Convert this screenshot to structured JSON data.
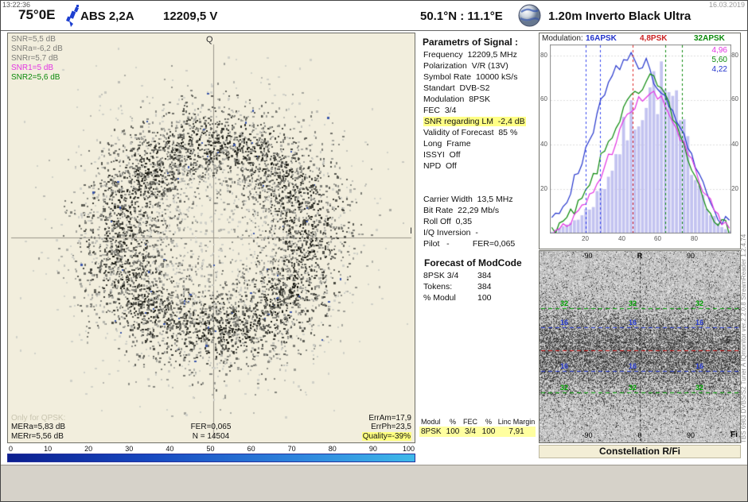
{
  "window": {
    "time": "13:22:36",
    "date": "16.03.2019"
  },
  "header": {
    "orbital_position": "75°0E",
    "satellite_name": "ABS 2,2A",
    "frequency_pol": "12209,5  V",
    "site_coords": "50.1°N : 11.1°E",
    "antenna": "1.20m  Inverto Black Ultra"
  },
  "constellation_panel": {
    "snr_readouts": [
      {
        "text": "SNR=5,5 dB",
        "color": "#7d7d78"
      },
      {
        "text": "SNRa=-6,2 dB",
        "color": "#7d7d78"
      },
      {
        "text": "SNRr=5,7 dB",
        "color": "#7d7d78"
      },
      {
        "text": "SNR1=5 dB",
        "color": "#e335e3"
      },
      {
        "text": "SNR2=5,6 dB",
        "color": "#0b8a0b"
      }
    ],
    "axis_labels": {
      "vertical": "Q",
      "horizontal": "I"
    },
    "footer_left": [
      "Only for QPSK:",
      "MERa=5,83 dB",
      "MERr=5,56 dB"
    ],
    "footer_center": [
      "FER=0,065",
      "N = 14504"
    ],
    "footer_right": [
      "ErrAm=17,9",
      "ErrPh=23,5"
    ],
    "quality_badge": "Quality=-39%"
  },
  "quality_scale": {
    "ticks": [
      "0",
      "10",
      "20",
      "30",
      "40",
      "50",
      "60",
      "70",
      "80",
      "90",
      "100"
    ]
  },
  "signal_params": {
    "title": "Parametrs of Signal :",
    "rows": [
      {
        "text": "Frequency  12209,5 MHz"
      },
      {
        "text": "Polarization  V/R (13V)"
      },
      {
        "text": "Symbol Rate  10000 kS/s"
      },
      {
        "text": "Standart  DVB-S2"
      },
      {
        "text": "Modulation  8PSK"
      },
      {
        "text": "FEC  3/4"
      },
      {
        "text": "SNR regarding LM  -2,4 dB",
        "hl": true
      },
      {
        "text": "Validity of Forecast  85 %"
      },
      {
        "text": "Long  Frame"
      },
      {
        "text": "ISSYI  Off"
      },
      {
        "text": "NPD  Off"
      },
      {
        "text": ""
      },
      {
        "text": ""
      },
      {
        "text": "Carrier Width  13,5 MHz"
      },
      {
        "text": "Bit Rate  22,29 Mb/s"
      },
      {
        "text": "Roll Off  0,35"
      },
      {
        "text": "I/Q Inversion  -"
      },
      {
        "text": "Pilot   -          FER=0,065"
      }
    ]
  },
  "modcode_forecast": {
    "title": "Forecast of ModCode",
    "rows": [
      {
        "label": "8PSK 3/4",
        "value": "384"
      },
      {
        "label": "Tokens:",
        "value": "384"
      },
      {
        "label": "% Modul",
        "value": "100"
      }
    ]
  },
  "modcode_table": {
    "headers": [
      "Modul",
      "%",
      "FEC",
      "%",
      "Linc Margin"
    ],
    "rows": [
      [
        "8PSK",
        "100",
        "3/4",
        "100",
        "7,91"
      ]
    ]
  },
  "histogram_panel": {
    "title": "Modulation:",
    "legend": [
      {
        "label": "16APSK",
        "color": "#2233cc"
      },
      {
        "label": "4,8PSK",
        "color": "#cc2222"
      },
      {
        "label": "32APSK",
        "color": "#0b8a0b"
      }
    ],
    "side_values": [
      {
        "label": "4,96",
        "color": "#e335e3"
      },
      {
        "label": "5,60",
        "color": "#0b8a0b"
      },
      {
        "label": "4,22",
        "color": "#2233cc"
      }
    ],
    "y_ticks": [
      "80",
      "60",
      "40",
      "20"
    ],
    "x_ticks": [
      "20",
      "40",
      "60",
      "80"
    ]
  },
  "waterfall_panel": {
    "caption": "Constellation  R/Fi"
  },
  "sidebar_text": "TBS 6983 DVBS/S2   Tuner A        IQmonitor  ver.2.2.0.8      StreamReader 1.2.4.74",
  "chart_data": [
    {
      "id": "constellation",
      "type": "scatter",
      "title": "8PSK constellation I/Q (noisy ring)",
      "n_symbols_shown": 14504,
      "n_points": 6500,
      "ring": {
        "center_x": 0.505,
        "center_y": 0.5,
        "mean_r": 0.235,
        "sigma_r": 0.058,
        "halo_sigma_r": 0.125,
        "halo_fraction": 0.22
      },
      "colors": {
        "blue": "#3c57aa",
        "axis": "#98948a",
        "background": "#f2eedd"
      }
    },
    {
      "id": "snr-histogram",
      "type": "histogram-lines",
      "title": "Modulation probability distributions",
      "ylim": [
        0,
        85
      ],
      "bar_color": "#c3c3f0",
      "bars": [
        1,
        2,
        2,
        3,
        4,
        5,
        6,
        7,
        8,
        10,
        12,
        14,
        17,
        20,
        23,
        27,
        31,
        35,
        39,
        43,
        47,
        51,
        54,
        57,
        60,
        62,
        64,
        65,
        66,
        65,
        63,
        60,
        57,
        53,
        48,
        43,
        38,
        33,
        28,
        23,
        18,
        14,
        10,
        7,
        5,
        3,
        2,
        1
      ],
      "series": [
        {
          "name": "16APSK-curve",
          "color": "#2233cc",
          "values": [
            6,
            8,
            10,
            13,
            16,
            20,
            24,
            28,
            33,
            38,
            43,
            48,
            53,
            58,
            62,
            66,
            70,
            73,
            76,
            78,
            77,
            79,
            75,
            72,
            74,
            76,
            71,
            67,
            63,
            66,
            62,
            58,
            54,
            50,
            46,
            42,
            38,
            34,
            30,
            26,
            22,
            18,
            15,
            12,
            9,
            7,
            5,
            4
          ]
        },
        {
          "name": "32APSK-curve",
          "color": "#0b8a0b",
          "values": [
            2,
            3,
            4,
            5,
            6,
            8,
            10,
            12,
            15,
            18,
            21,
            25,
            29,
            33,
            37,
            41,
            45,
            48,
            52,
            55,
            58,
            61,
            63,
            60,
            64,
            67,
            69,
            71,
            68,
            65,
            61,
            57,
            53,
            49,
            44,
            40,
            35,
            30,
            26,
            22,
            18,
            14,
            11,
            8,
            6,
            4,
            3,
            2
          ]
        },
        {
          "name": "8PSK-curve",
          "color": "#e335e3",
          "values": [
            1,
            2,
            2,
            3,
            4,
            5,
            7,
            9,
            11,
            13,
            16,
            19,
            22,
            26,
            30,
            34,
            38,
            42,
            45,
            49,
            52,
            55,
            57,
            59,
            61,
            62,
            63,
            62,
            61,
            59,
            57,
            54,
            51,
            47,
            43,
            39,
            35,
            31,
            27,
            23,
            19,
            16,
            13,
            10,
            8,
            6,
            4,
            3
          ]
        }
      ],
      "vlines": [
        {
          "x": 0.2,
          "color": "#3344ee"
        },
        {
          "x": 0.28,
          "color": "#3344ee"
        },
        {
          "x": 0.46,
          "color": "#dd2222"
        },
        {
          "x": 0.64,
          "color": "#0b8a0b"
        },
        {
          "x": 0.73,
          "color": "#0b8a0b"
        }
      ]
    },
    {
      "id": "r-fi-waterfall",
      "type": "heatmap",
      "title": "Constellation R/Fi noise field",
      "noise_band": {
        "center": 0.53,
        "sigma": 0.21
      },
      "hlines": [
        {
          "pos": 0.3,
          "color": "#00a000",
          "label": "32"
        },
        {
          "pos": 0.4,
          "color": "#2b3fd6",
          "label": "16"
        },
        {
          "pos": 0.52,
          "color": "#cc1111",
          "label": ""
        },
        {
          "pos": 0.63,
          "color": "#2b3fd6",
          "label": "16"
        },
        {
          "pos": 0.74,
          "color": "#00a000",
          "label": "32"
        }
      ],
      "x_axis_top": [
        "-90",
        "R",
        "90"
      ],
      "x_axis_bottom": [
        "-90",
        "0",
        "90"
      ],
      "corner_label": "Fi"
    }
  ]
}
